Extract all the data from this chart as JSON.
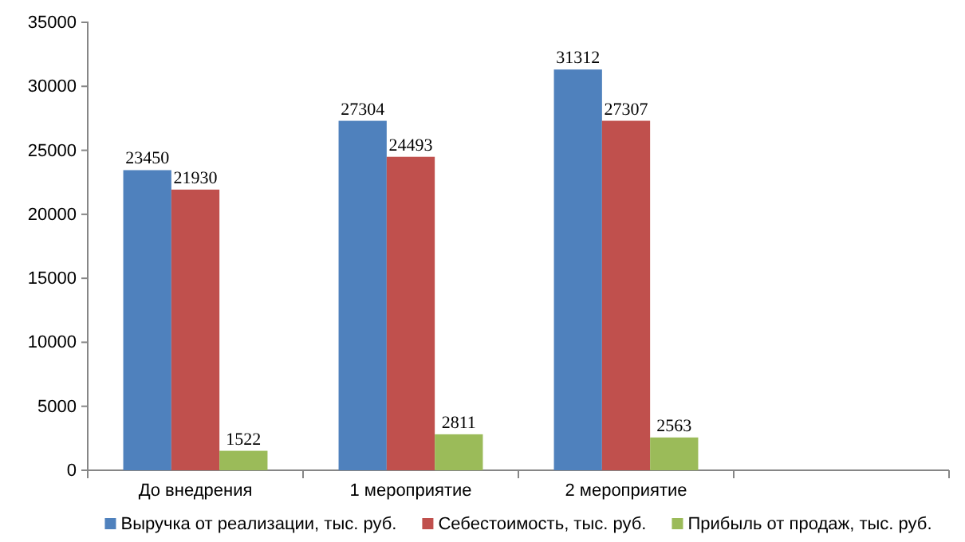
{
  "chart_data": {
    "type": "bar",
    "categories": [
      "До внедрения",
      "1 мероприятие",
      "2 мероприятие",
      null
    ],
    "series": [
      {
        "name": "Выручка от реализации, тыс. руб.",
        "color": "#4f81bd",
        "values": [
          23450,
          27304,
          31312,
          null
        ]
      },
      {
        "name": "Себестоимость, тыс. руб.",
        "color": "#c0504d",
        "values": [
          21930,
          24493,
          27307,
          null
        ]
      },
      {
        "name": "Прибыль от продаж, тыс. руб.",
        "color": "#9bbb59",
        "values": [
          1522,
          2811,
          2563,
          null
        ]
      }
    ],
    "ylim": [
      0,
      35000
    ],
    "yticks": [
      0,
      5000,
      10000,
      15000,
      20000,
      25000,
      30000,
      35000
    ],
    "data_labels": true,
    "legend": "bottom",
    "grid": false
  }
}
